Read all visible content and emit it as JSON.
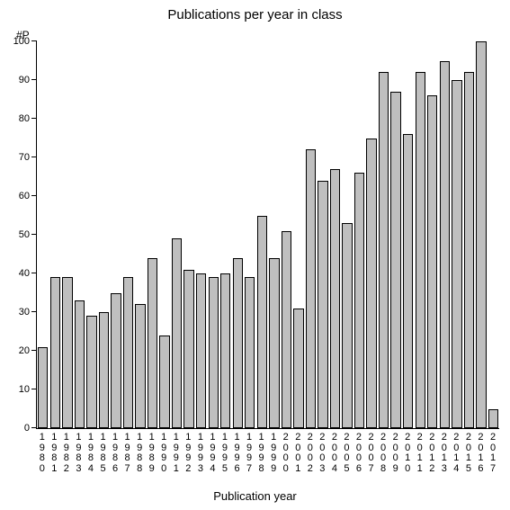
{
  "chart": {
    "type": "bar",
    "title": "Publications per year in class",
    "title_fontsize": 15,
    "y_axis_label": "#P",
    "x_axis_title": "Publication year",
    "x_axis_title_fontsize": 13,
    "label_fontsize": 11,
    "ylim": [
      0,
      100
    ],
    "ytick_step": 10,
    "yticks": [
      0,
      10,
      20,
      30,
      40,
      50,
      60,
      70,
      80,
      90,
      100
    ],
    "background_color": "#ffffff",
    "bar_fill": "#bfbfbf",
    "bar_border": "#000000",
    "axis_color": "#000000",
    "bar_width": 0.84,
    "categories": [
      "1980",
      "1981",
      "1982",
      "1983",
      "1984",
      "1985",
      "1986",
      "1987",
      "1988",
      "1989",
      "1990",
      "1991",
      "1992",
      "1993",
      "1994",
      "1995",
      "1996",
      "1997",
      "1998",
      "1999",
      "2000",
      "2001",
      "2002",
      "2003",
      "2004",
      "2005",
      "2006",
      "2007",
      "2008",
      "2009",
      "2010",
      "2011",
      "2012",
      "2013",
      "2014",
      "2015",
      "2016",
      "2017"
    ],
    "values": [
      21,
      39,
      39,
      33,
      29,
      30,
      35,
      39,
      32,
      44,
      24,
      49,
      41,
      40,
      39,
      40,
      44,
      39,
      55,
      44,
      51,
      31,
      72,
      64,
      67,
      53,
      66,
      75,
      92,
      87,
      76,
      92,
      86,
      95,
      90,
      92,
      100,
      5
    ]
  }
}
